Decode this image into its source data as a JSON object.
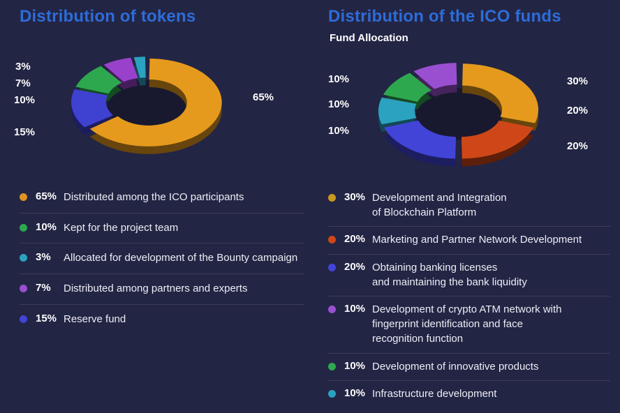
{
  "sections": {
    "left": {
      "title": "Distribution of tokens",
      "callouts": [
        "3%",
        "7%",
        "10%",
        "15%",
        "65%"
      ],
      "legend": [
        {
          "pct": "65%",
          "text": "Distributed among the ICO participants",
          "color": "#dd941f"
        },
        {
          "pct": "10%",
          "text": "Kept for the project team",
          "color": "#2ea84e"
        },
        {
          "pct": "3%",
          "text": "Allocated for development of the Bounty campaign",
          "color": "#2ba2c0"
        },
        {
          "pct": "7%",
          "text": "Distributed among partners and experts",
          "color": "#9a4fd0"
        },
        {
          "pct": "15%",
          "text": "Reserve fund",
          "color": "#4244d8"
        }
      ]
    },
    "right": {
      "title": "Distribution of the ICO funds",
      "subtitle": "Fund Allocation",
      "callouts": [
        "10%",
        "10%",
        "10%",
        "30%",
        "20%",
        "20%"
      ],
      "legend": [
        {
          "pct": "30%",
          "text": "Development and Integration\nof Blockchain Platform",
          "color": "#c8991f"
        },
        {
          "pct": "20%",
          "text": "Marketing and Partner Network Development",
          "color": "#cf4718"
        },
        {
          "pct": "20%",
          "text": "Obtaining banking licenses\nand maintaining the bank liquidity",
          "color": "#4244d8"
        },
        {
          "pct": "10%",
          "text": "Development of crypto ATM network with\nfingerprint identification and face\nrecognition function",
          "color": "#9a4fd0"
        },
        {
          "pct": "10%",
          "text": "Development of innovative products",
          "color": "#2ea84e"
        },
        {
          "pct": "10%",
          "text": "Infrastructure development",
          "color": "#2ba2c0"
        }
      ]
    }
  },
  "chart_data": [
    {
      "type": "pie",
      "variant": "3d-donut",
      "title": "Distribution of tokens",
      "unit": "percent",
      "legend_position": "bottom",
      "segments_clockwise_from_top": [
        {
          "label": "Distributed among the ICO participants",
          "value": 65,
          "color": "#e59a1d"
        },
        {
          "label": "Reserve fund",
          "value": 15,
          "color": "#3f41d0"
        },
        {
          "label": "Kept for the project team",
          "value": 10,
          "color": "#2ea84e"
        },
        {
          "label": "Distributed among partners and experts",
          "value": 7,
          "color": "#9a41cc"
        },
        {
          "label": "Allocated for development of the Bounty campaign",
          "value": 3,
          "color": "#2ba2c0"
        }
      ]
    },
    {
      "type": "pie",
      "variant": "3d-donut",
      "title": "Distribution of the ICO funds",
      "subtitle": "Fund Allocation",
      "unit": "percent",
      "legend_position": "bottom",
      "segments_clockwise_from_top": [
        {
          "label": "Development and Integration of Blockchain Platform",
          "value": 30,
          "color": "#e59a1d"
        },
        {
          "label": "Marketing and Partner Network Development",
          "value": 20,
          "color": "#cf4718"
        },
        {
          "label": "Obtaining banking licenses and maintaining the bank liquidity",
          "value": 20,
          "color": "#4244d8"
        },
        {
          "label": "Infrastructure development",
          "value": 10,
          "color": "#2ba2c0"
        },
        {
          "label": "Development of innovative products",
          "value": 10,
          "color": "#2ea84e"
        },
        {
          "label": "Development of crypto ATM network with fingerprint identification and face recognition function",
          "value": 10,
          "color": "#9a4fd0"
        }
      ]
    }
  ]
}
